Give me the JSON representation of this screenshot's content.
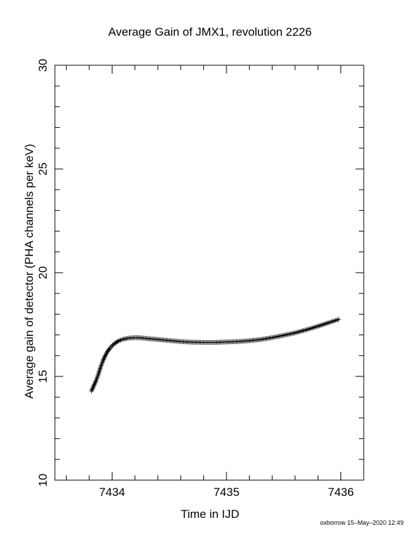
{
  "chart_data": {
    "type": "scatter",
    "title": "Average Gain of JMX1, revolution 2226",
    "xlabel": "Time in IJD",
    "ylabel": "Average gain of detector (PHA channels per keV)",
    "xlim": [
      7433.5,
      7436.2
    ],
    "ylim": [
      10,
      30
    ],
    "xticks": [
      "7434",
      "7435",
      "7436"
    ],
    "yticks": [
      "10",
      "15",
      "20",
      "25",
      "30"
    ],
    "grid": false,
    "marker": "+",
    "series": [
      {
        "x": [
          7433.82,
          7433.84,
          7433.86,
          7433.88,
          7433.9,
          7433.92,
          7433.94,
          7433.96,
          7433.98,
          7434.0,
          7434.03,
          7434.06,
          7434.1,
          7434.15,
          7434.2,
          7434.25,
          7434.3,
          7434.4,
          7434.5,
          7434.6,
          7434.7,
          7434.8,
          7434.9,
          7435.0,
          7435.1,
          7435.2,
          7435.3,
          7435.4,
          7435.5,
          7435.6,
          7435.7,
          7435.8,
          7435.9,
          7435.98
        ],
        "y": [
          14.3,
          14.55,
          14.8,
          15.1,
          15.45,
          15.75,
          16.0,
          16.2,
          16.35,
          16.48,
          16.62,
          16.72,
          16.8,
          16.85,
          16.87,
          16.86,
          16.83,
          16.78,
          16.73,
          16.68,
          16.65,
          16.64,
          16.64,
          16.66,
          16.68,
          16.72,
          16.78,
          16.87,
          16.98,
          17.1,
          17.25,
          17.42,
          17.6,
          17.75
        ]
      }
    ]
  },
  "footer": "oxborrow 15–May–2020 12:49"
}
